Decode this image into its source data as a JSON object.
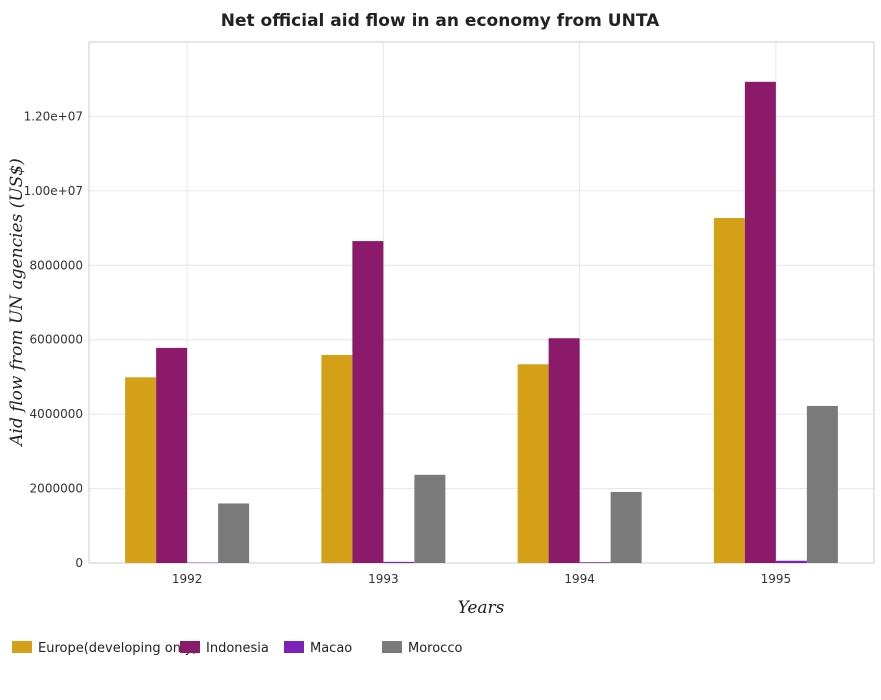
{
  "chart_data": {
    "type": "bar",
    "title": "Net official aid flow in an economy from UNTA",
    "xlabel": "Years",
    "ylabel": "Aid flow from UN agencies (US$)",
    "categories": [
      "1992",
      "1993",
      "1994",
      "1995"
    ],
    "series": [
      {
        "name": "Europe(developing only)",
        "color": "#d4a017",
        "values": [
          4990000,
          5590000,
          5340000,
          9270000
        ]
      },
      {
        "name": "Indonesia",
        "color": "#8b1a6b",
        "values": [
          5780000,
          8650000,
          6040000,
          12930000
        ]
      },
      {
        "name": "Macao",
        "color": "#7b22b8",
        "values": [
          10000,
          30000,
          20000,
          60000
        ]
      },
      {
        "name": "Morocco",
        "color": "#7a7a7a",
        "values": [
          1600000,
          2370000,
          1910000,
          4220000
        ]
      }
    ],
    "ylim": [
      0,
      14000000
    ],
    "yticks": [
      0,
      2000000,
      4000000,
      6000000,
      8000000,
      10000000,
      12000000
    ],
    "ytick_labels": [
      "0",
      "2000000",
      "4000000",
      "6000000",
      "8000000",
      "1.00e+07",
      "1.20e+07"
    ],
    "grid": true,
    "legend_position": "bottom-left"
  }
}
